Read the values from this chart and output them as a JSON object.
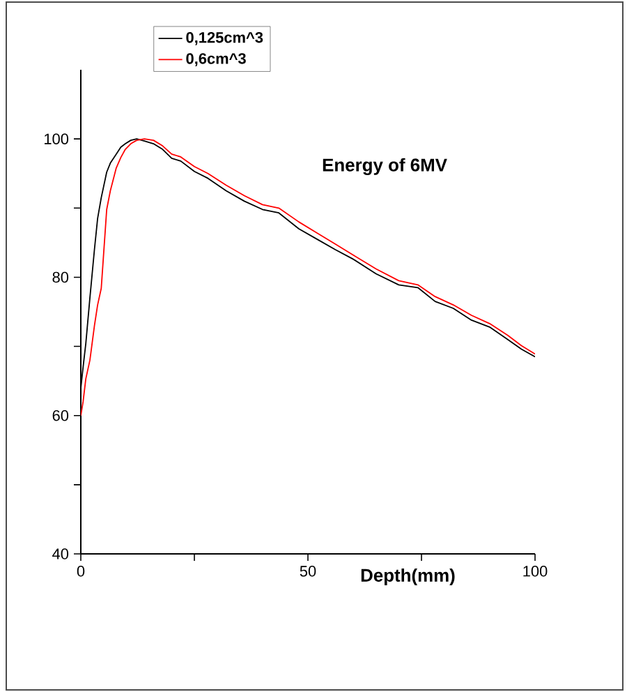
{
  "chart_data": {
    "type": "line",
    "x": [
      0,
      0.5,
      1.1,
      2,
      3,
      3.7,
      4.5,
      5.7,
      6.5,
      7.8,
      8.8,
      9.8,
      11,
      12.3,
      14,
      16,
      18,
      20,
      22,
      25,
      28,
      32,
      36,
      40,
      43.6,
      48,
      52,
      56,
      60,
      65,
      70,
      74.2,
      78,
      82,
      86,
      90,
      94,
      97,
      100
    ],
    "series": [
      {
        "name": "0,125cm^3",
        "color": "#000000",
        "values": [
          64,
          67,
          70.4,
          77,
          84,
          88.5,
          91.5,
          95.2,
          96.5,
          97.8,
          98.8,
          99.3,
          99.8,
          100,
          99.7,
          99.3,
          98.5,
          97.2,
          96.8,
          95.3,
          94.3,
          92.5,
          91,
          89.8,
          89.3,
          87,
          85.5,
          84,
          82.6,
          80.5,
          78.9,
          78.5,
          76.5,
          75.5,
          73.8,
          72.8,
          71,
          69.6,
          68.5
        ]
      },
      {
        "name": "0,6cm^3",
        "color": "#ff0000",
        "values": [
          60,
          62,
          65.3,
          68,
          73,
          76,
          78.4,
          89.8,
          92.5,
          95.8,
          97.3,
          98.5,
          99.3,
          99.8,
          100,
          99.8,
          99,
          97.8,
          97.4,
          96,
          95,
          93.3,
          91.8,
          90.5,
          90,
          88,
          86.4,
          84.8,
          83.2,
          81.2,
          79.5,
          78.9,
          77.2,
          76,
          74.5,
          73.3,
          71.6,
          70.1,
          68.9
        ]
      }
    ],
    "xlabel": "Depth(mm)",
    "annotations": [
      "Energy of 6MV"
    ],
    "xlim": [
      0,
      100
    ],
    "ylim": [
      40,
      110
    ],
    "xticks": [
      0,
      {
        "value": 25,
        "label": null
      },
      50,
      {
        "value": 75,
        "label": null
      },
      100
    ],
    "yticks": [
      40,
      {
        "value": 50,
        "label": null
      },
      60,
      {
        "value": 70,
        "label": null
      },
      80,
      {
        "value": 90,
        "label": null
      },
      100
    ],
    "legend": "top left",
    "grid": false,
    "marker": "none",
    "line_style": "solid"
  }
}
